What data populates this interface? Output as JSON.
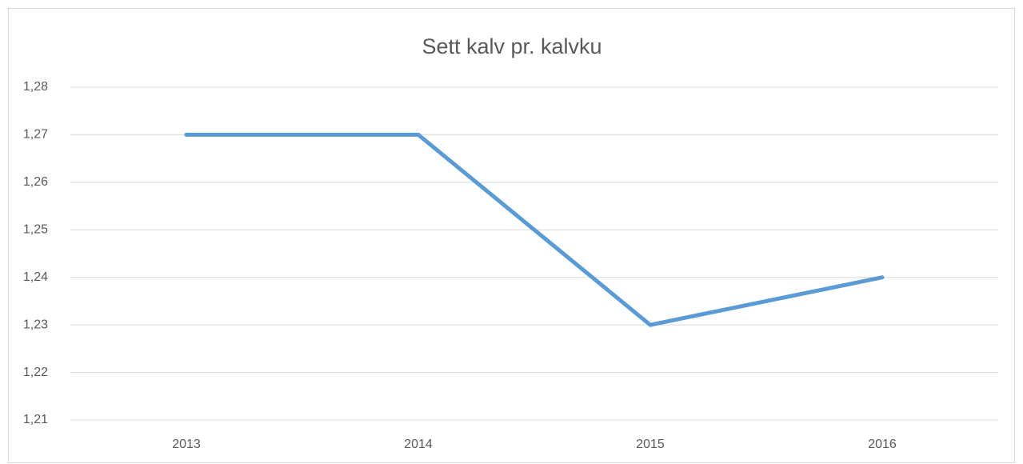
{
  "chart_data": {
    "type": "line",
    "title": "Sett kalv pr. kalvku",
    "categories": [
      "2013",
      "2014",
      "2015",
      "2016"
    ],
    "series": [
      {
        "name": "Sett kalv pr. kalvku",
        "color": "#5b9bd5",
        "values": [
          1.27,
          1.27,
          1.23,
          1.24
        ]
      }
    ],
    "ylim": [
      1.21,
      1.28
    ],
    "yticks": [
      {
        "value": 1.21,
        "label": "1,21"
      },
      {
        "value": 1.22,
        "label": "1,22"
      },
      {
        "value": 1.23,
        "label": "1,23"
      },
      {
        "value": 1.24,
        "label": "1,24"
      },
      {
        "value": 1.25,
        "label": "1,25"
      },
      {
        "value": 1.26,
        "label": "1,26"
      },
      {
        "value": 1.27,
        "label": "1,27"
      },
      {
        "value": 1.28,
        "label": "1,28"
      }
    ],
    "grid": true
  }
}
